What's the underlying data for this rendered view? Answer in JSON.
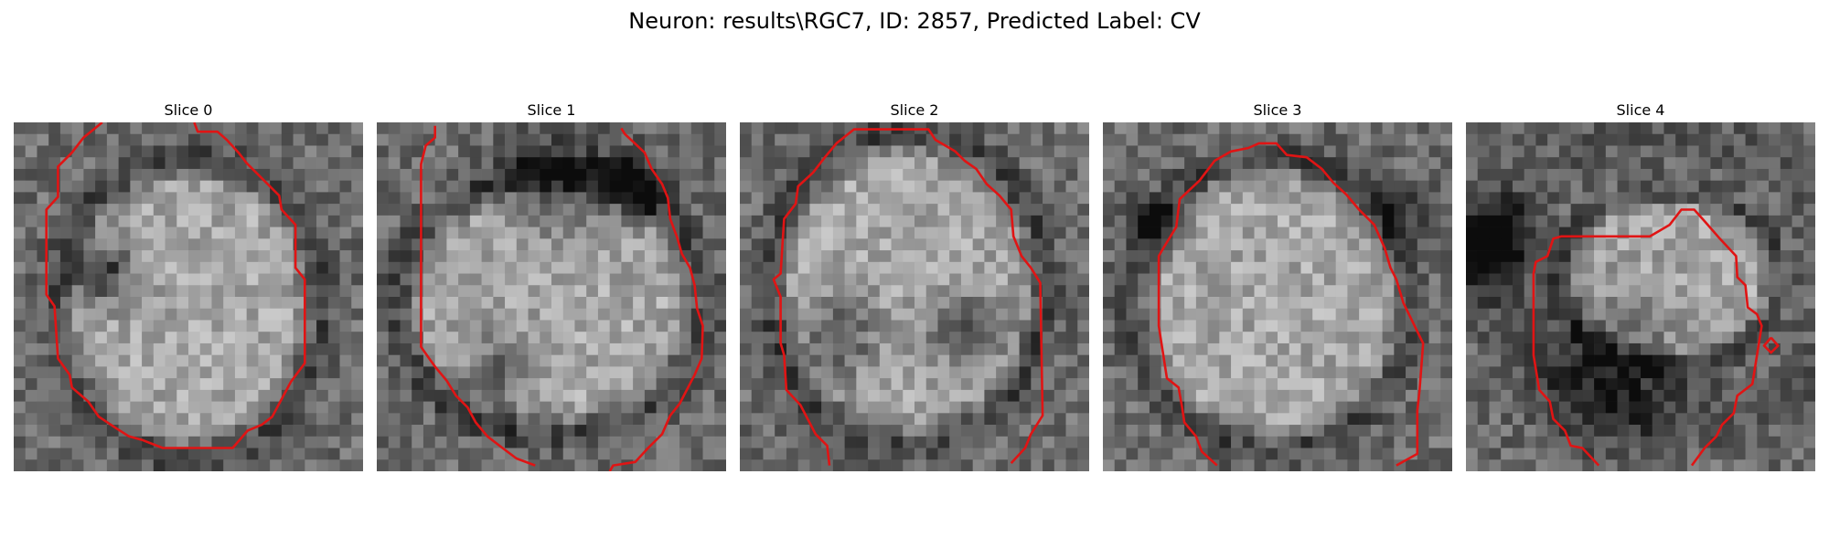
{
  "figure": {
    "title": "Neuron: results\\RGC7, ID: 2857, Predicted Label: CV"
  },
  "slices": [
    {
      "title": "Slice 0"
    },
    {
      "title": "Slice 1"
    },
    {
      "title": "Slice 2"
    },
    {
      "title": "Slice 3"
    },
    {
      "title": "Slice 4"
    }
  ],
  "colors": {
    "contour": "#e01414",
    "background": "#ffffff"
  }
}
